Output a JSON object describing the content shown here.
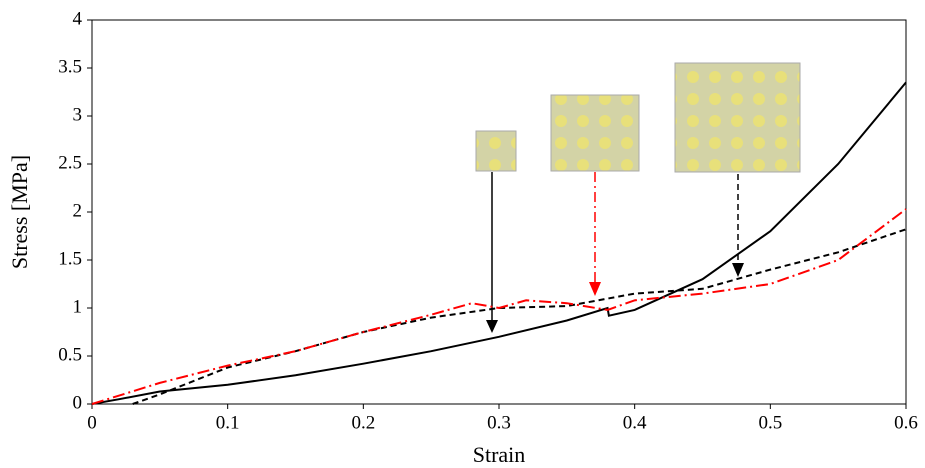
{
  "chart_data": {
    "type": "line",
    "xlabel": "Strain",
    "ylabel": "Stress [MPa]",
    "xlim": [
      0,
      0.6
    ],
    "xticks": [
      0,
      0.1,
      0.2,
      0.3,
      0.4,
      0.5,
      0.6
    ],
    "ylim": [
      0,
      4
    ],
    "yticks": [
      0,
      0.5,
      1,
      1.5,
      2,
      2.5,
      3,
      3.5,
      4
    ],
    "grid": false,
    "series": [
      {
        "color": "#000000",
        "style": "solid",
        "x": [
          0,
          0.02,
          0.05,
          0.1,
          0.15,
          0.2,
          0.25,
          0.3,
          0.35,
          0.38,
          0.381,
          0.4,
          0.45,
          0.5,
          0.55,
          0.6
        ],
        "values": [
          0,
          0.05,
          0.13,
          0.2,
          0.3,
          0.42,
          0.55,
          0.7,
          0.87,
          1.0,
          0.92,
          0.98,
          1.3,
          1.8,
          2.5,
          3.35
        ]
      },
      {
        "color": "#000000",
        "style": "dashed",
        "x": [
          0.03,
          0.05,
          0.1,
          0.15,
          0.2,
          0.25,
          0.3,
          0.35,
          0.4,
          0.45,
          0.5,
          0.55,
          0.6
        ],
        "values": [
          0,
          0.1,
          0.38,
          0.55,
          0.75,
          0.9,
          1.0,
          1.02,
          1.15,
          1.2,
          1.4,
          1.58,
          1.82
        ]
      },
      {
        "color": "#ff0000",
        "style": "dashdot",
        "x": [
          0,
          0.05,
          0.1,
          0.15,
          0.2,
          0.25,
          0.28,
          0.3,
          0.32,
          0.35,
          0.38,
          0.4,
          0.45,
          0.5,
          0.55,
          0.6
        ],
        "values": [
          0,
          0.22,
          0.4,
          0.55,
          0.75,
          0.93,
          1.05,
          1.0,
          1.08,
          1.05,
          0.98,
          1.08,
          1.15,
          1.25,
          1.5,
          2.03
        ]
      }
    ]
  }
}
